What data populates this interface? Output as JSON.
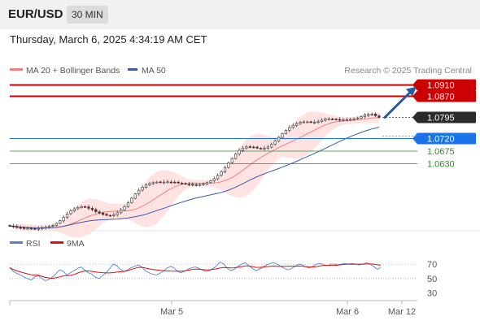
{
  "header": {
    "symbol": "EUR/USD",
    "interval": "30 MIN",
    "timestamp": "Thursday, March 6, 2025 4:34:19 AM CET"
  },
  "colors": {
    "bollinger_line": "#f08080",
    "bollinger_fill": "#ffe0e0",
    "ma50": "#3b5ba8",
    "resistance": "#cc0000",
    "pivot": "#1a73e8",
    "support": "#2e8b2e",
    "up_candle": "#ffffff",
    "down_candle": "#d00000",
    "rsi": "#5b7fd6",
    "rsi_ma": "#e01010",
    "arrow": "#2a5aa0"
  },
  "chart_data": [
    {
      "type": "candlestick",
      "legend": [
        {
          "name": "MA 20 + Bollinger Bands",
          "color": "#f08080"
        },
        {
          "name": "MA 50",
          "color": "#3b5ba8"
        }
      ],
      "watermark": "Research © 2025 Trading Central",
      "ylim": [
        1.0395,
        1.0935
      ],
      "x_ticks": [
        "Mar 5",
        "Mar 6",
        "Mar 12"
      ],
      "levels": [
        {
          "value": 1.091,
          "label": "1.0910",
          "kind": "resistance",
          "tag": "filled-red"
        },
        {
          "value": 1.087,
          "label": "1.0870",
          "kind": "resistance",
          "tag": "filled-red"
        },
        {
          "value": 1.0795,
          "label": "1.0795",
          "kind": "current",
          "tag": "filled-dark"
        },
        {
          "value": 1.072,
          "label": "1.0720",
          "kind": "pivot",
          "tag": "filled-blue"
        },
        {
          "value": 1.0675,
          "label": "1.0675",
          "kind": "support",
          "tag": "text-green"
        },
        {
          "value": 1.063,
          "label": "1.0630",
          "kind": "support",
          "tag": "text-green"
        }
      ],
      "close_series": [
        1.0409,
        1.0407,
        1.0404,
        1.0402,
        1.04,
        1.0401,
        1.0399,
        1.0398,
        1.04,
        1.0402,
        1.0404,
        1.0407,
        1.0411,
        1.0418,
        1.0428,
        1.044,
        1.0452,
        1.0463,
        1.047,
        1.0475,
        1.0478,
        1.0476,
        1.0472,
        1.0467,
        1.046,
        1.0455,
        1.045,
        1.0447,
        1.0446,
        1.0449,
        1.0456,
        1.0466,
        1.0478,
        1.0492,
        1.0508,
        1.0523,
        1.0536,
        1.0547,
        1.0555,
        1.056,
        1.0563,
        1.0565,
        1.0564,
        1.0565,
        1.0566,
        1.0565,
        1.0564,
        1.0562,
        1.056,
        1.0558,
        1.0557,
        1.0555,
        1.0555,
        1.0556,
        1.0559,
        1.0563,
        1.0569,
        1.0577,
        1.0589,
        1.0602,
        1.0617,
        1.0633,
        1.0649,
        1.0665,
        1.0678,
        1.0686,
        1.069,
        1.069,
        1.0689,
        1.0686,
        1.0684,
        1.0685,
        1.069,
        1.0699,
        1.0711,
        1.0724,
        1.0737,
        1.0749,
        1.0759,
        1.0767,
        1.0773,
        1.0777,
        1.0779,
        1.0779,
        1.0778,
        1.0778,
        1.078,
        1.0785,
        1.0789,
        1.079,
        1.0789,
        1.0787,
        1.0786,
        1.0786,
        1.0787,
        1.0788,
        1.079,
        1.0793,
        1.0798,
        1.0803,
        1.0805,
        1.0806,
        1.0801,
        1.0795
      ],
      "forecast_arrow": {
        "from": 1.0795,
        "to": 1.091
      }
    },
    {
      "type": "line",
      "series": [
        {
          "name": "RSI",
          "color": "#5b7fd6"
        },
        {
          "name": "9MA",
          "color": "#e01010"
        }
      ],
      "ylim": [
        25,
        78
      ],
      "y_ticks": [
        70,
        50,
        30
      ],
      "reference_lines": [
        70,
        50
      ],
      "rsi_values": [
        65,
        60,
        57,
        55,
        52,
        50,
        48,
        52,
        54,
        50,
        47,
        49,
        52,
        57,
        62,
        60,
        55,
        58,
        61,
        64,
        66,
        62,
        58,
        56,
        52,
        50,
        54,
        58,
        64,
        70,
        68,
        63,
        60,
        62,
        65,
        67,
        69,
        66,
        61,
        58,
        56,
        55,
        57,
        60,
        64,
        67,
        65,
        60,
        58,
        60,
        63,
        65,
        66,
        64,
        62,
        60,
        61,
        64,
        68,
        73,
        70,
        64,
        61,
        63,
        67,
        70,
        72,
        68,
        64,
        61,
        63,
        66,
        69,
        71,
        72,
        70,
        67,
        64,
        62,
        64,
        67,
        70,
        69,
        66,
        65,
        67,
        70,
        71,
        69,
        68,
        70,
        70,
        69,
        70,
        71,
        70,
        71,
        70,
        69,
        70,
        72,
        70,
        67,
        63,
        65
      ]
    }
  ]
}
